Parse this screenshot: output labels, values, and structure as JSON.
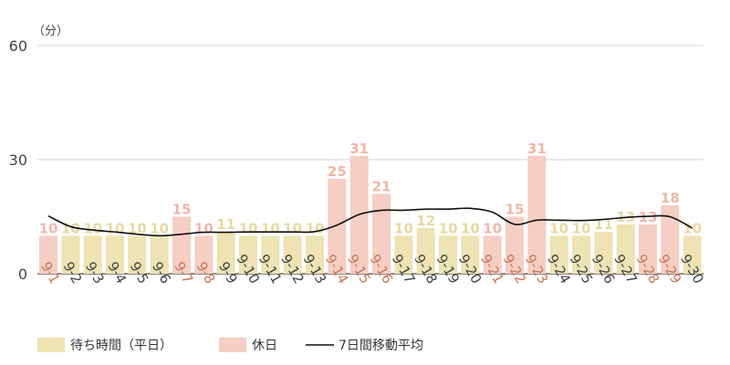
{
  "chart_data": {
    "type": "bar",
    "unit_label": "（分）",
    "ylim": [
      0,
      60
    ],
    "y_ticks": [
      0,
      30,
      60
    ],
    "grid": true,
    "legend_position": "bottom-left",
    "categories": [
      "9-1",
      "9-2",
      "9-3",
      "9-4",
      "9-5",
      "9-6",
      "9-7",
      "9-8",
      "9-9",
      "9-10",
      "9-11",
      "9-12",
      "9-13",
      "9-14",
      "9-15",
      "9-16",
      "9-17",
      "9-18",
      "9-19",
      "9-20",
      "9-21",
      "9-22",
      "9-23",
      "9-24",
      "9-25",
      "9-26",
      "9-27",
      "9-28",
      "9-29",
      "9-30"
    ],
    "values": [
      10,
      10,
      10,
      10,
      10,
      10,
      15,
      10,
      11,
      10,
      10,
      10,
      10,
      25,
      31,
      21,
      10,
      12,
      10,
      10,
      10,
      15,
      31,
      10,
      10,
      11,
      13,
      13,
      18,
      10
    ],
    "holiday": [
      true,
      false,
      false,
      false,
      false,
      false,
      true,
      true,
      false,
      false,
      false,
      false,
      false,
      true,
      true,
      true,
      false,
      false,
      false,
      false,
      true,
      true,
      true,
      false,
      false,
      false,
      false,
      true,
      true,
      false
    ],
    "moving_average": [
      15.2,
      12.4,
      11.5,
      11.0,
      10.4,
      10.0,
      10.4,
      10.9,
      10.9,
      11.0,
      11.0,
      11.0,
      11.1,
      12.8,
      15.6,
      16.7,
      16.7,
      17.0,
      17.0,
      17.2,
      16.2,
      13.0,
      14.1,
      14.1,
      14.0,
      14.3,
      14.8,
      15.1,
      15.0,
      12.0
    ],
    "series": [
      {
        "name": "待ち時間（平日）",
        "color": "#ede3b3"
      },
      {
        "name": "休日",
        "color": "#f5cec4"
      },
      {
        "name": "7日間移動平均",
        "color": "#111111"
      }
    ],
    "colors": {
      "weekday_label": "#e6d9a1",
      "holiday_label": "#efb7a8",
      "weekday_axis_label": "#444444",
      "holiday_axis_label": "#c97757",
      "grid": "#d4d4d4",
      "axis": "#444444"
    }
  }
}
